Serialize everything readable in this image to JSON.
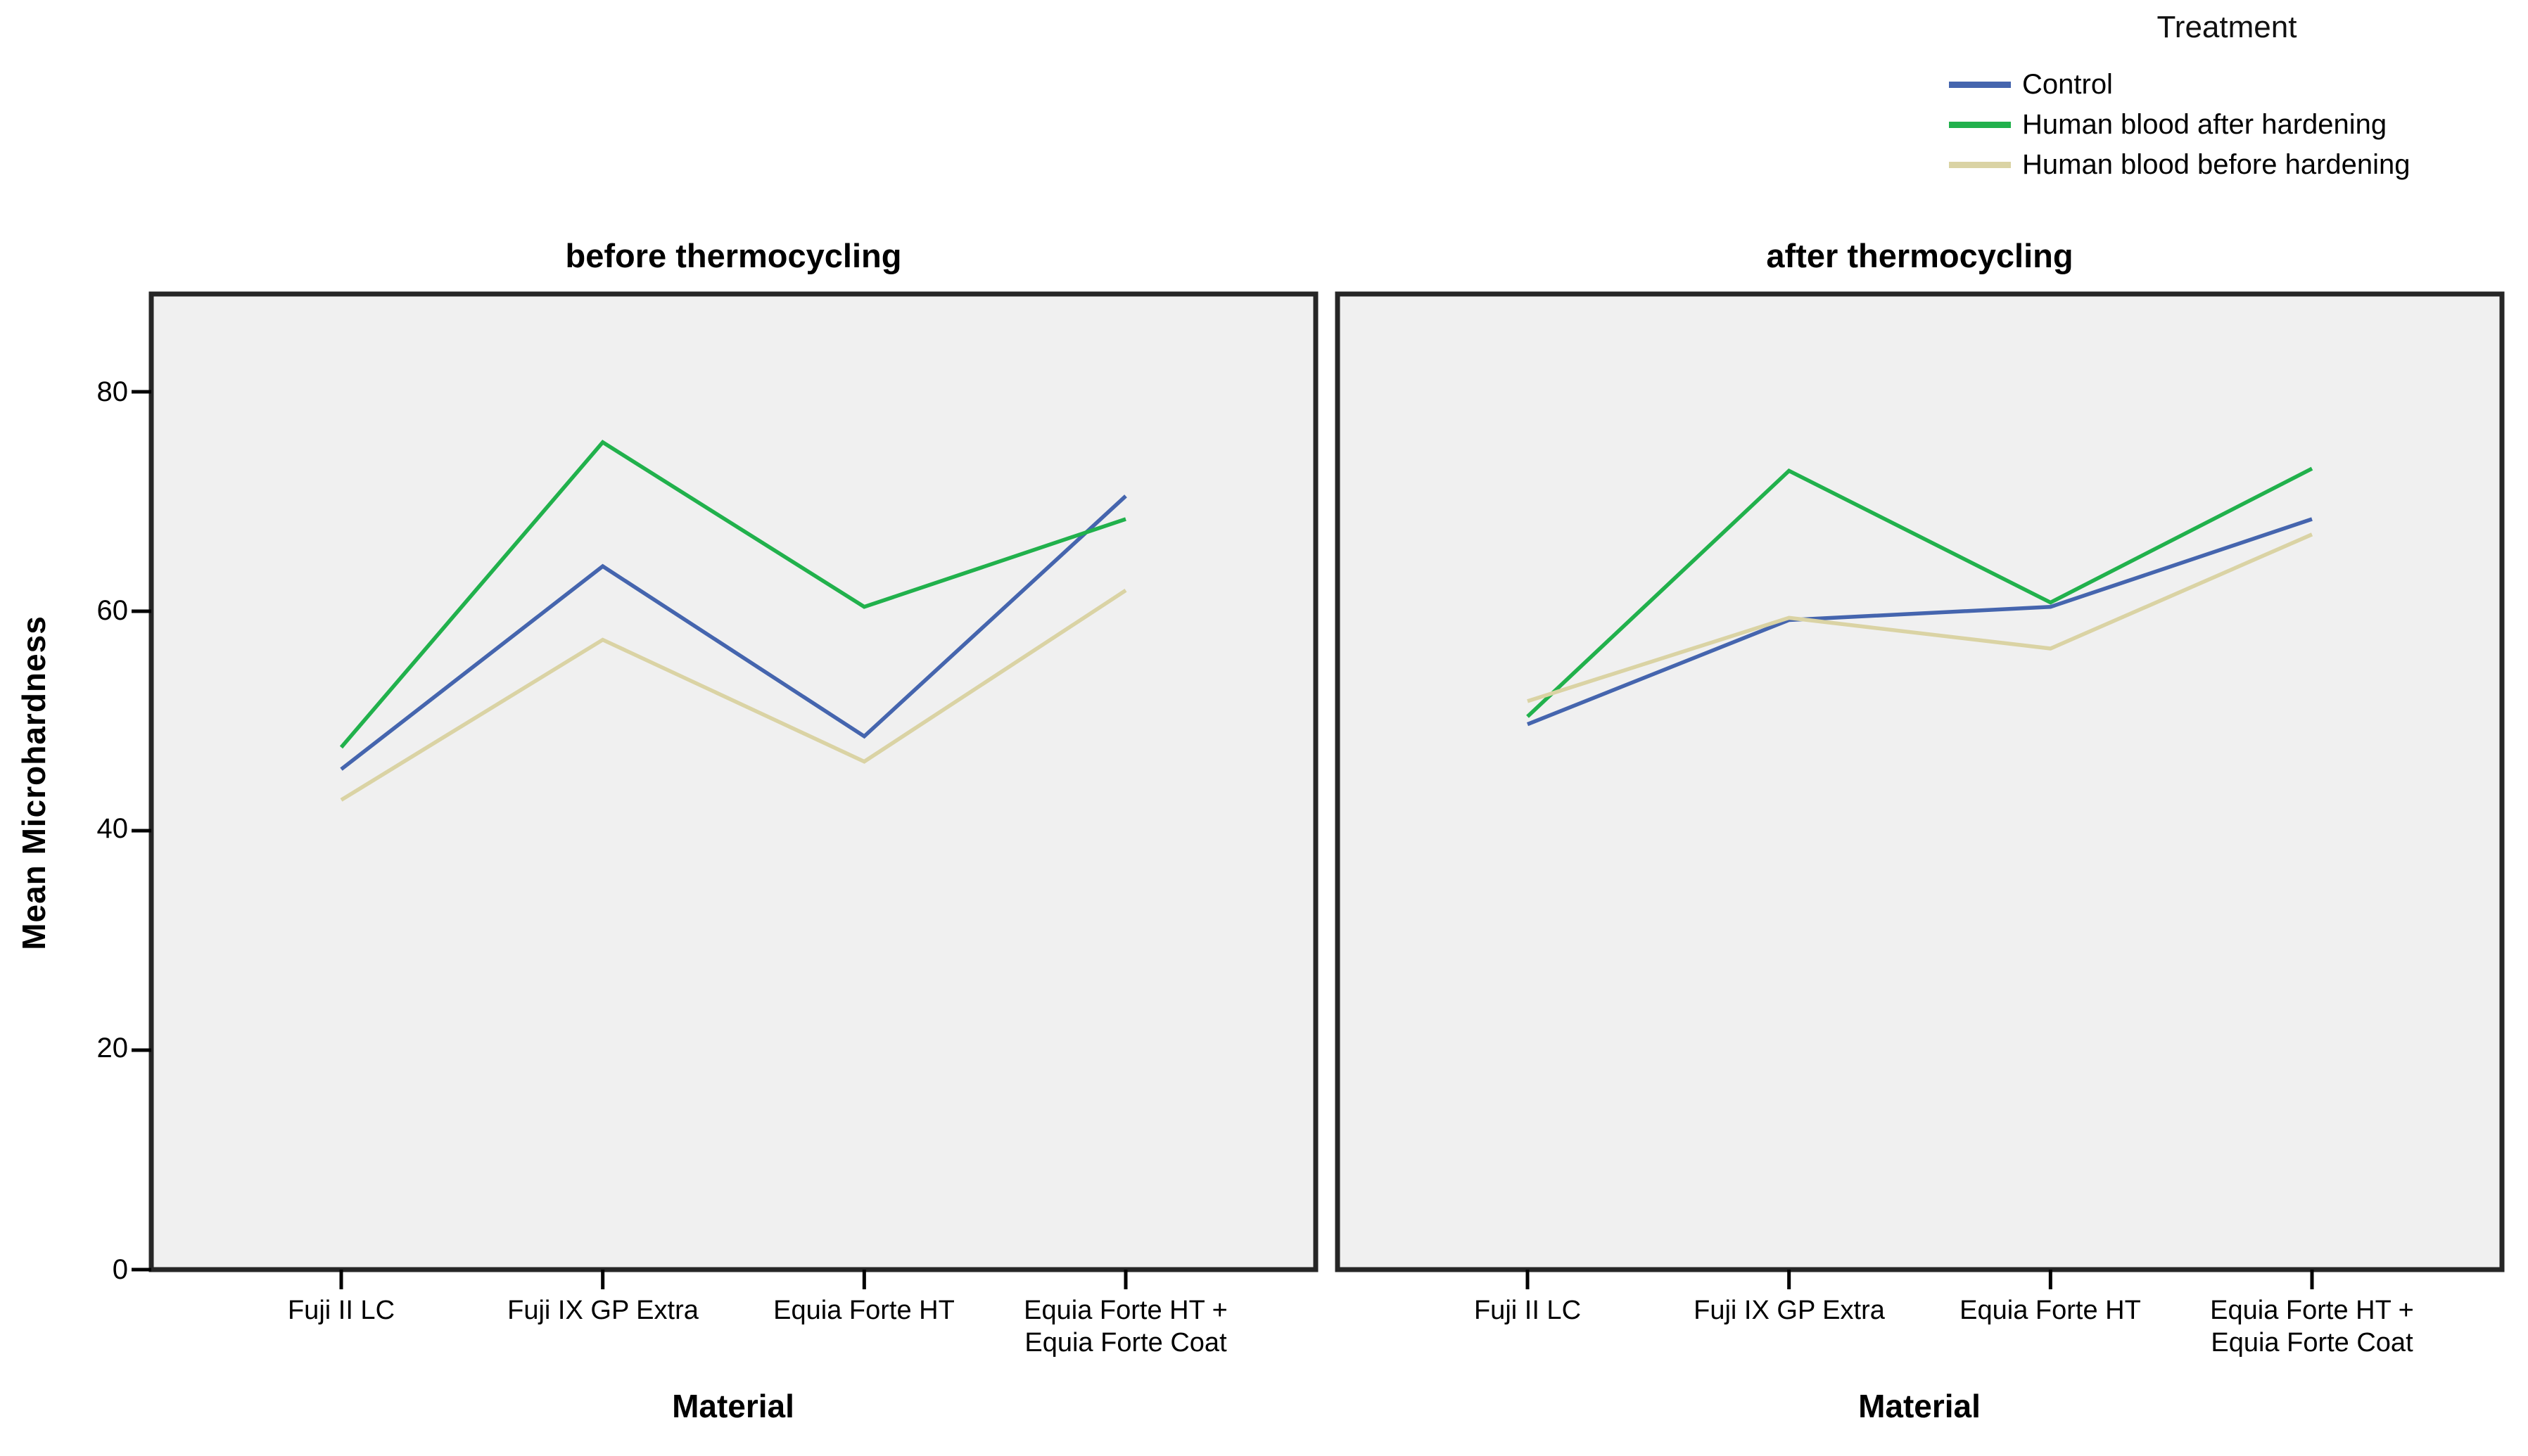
{
  "figure": {
    "legend": {
      "title": "Treatment",
      "items": [
        {
          "label": "Control",
          "color": "#4565AE"
        },
        {
          "label": "Human blood after hardening",
          "color": "#21B14C"
        },
        {
          "label": "Human blood before hardening",
          "color": "#DAD3A4"
        }
      ]
    },
    "y_axis": {
      "label": "Mean Microhardness",
      "tick_labels": [
        "80",
        "60",
        "40",
        "20",
        "0"
      ]
    },
    "x_axis": {
      "label_left": "Material",
      "label_right": "Material",
      "categories": [
        "Fuji II LC",
        "Fuji IX GP Extra",
        "Equia Forte HT",
        "Equia Forte HT +\nEquia Forte Coat"
      ]
    },
    "colors": {
      "plot_background": "#F0F0F0",
      "frame": "#262626",
      "axis": "#000000"
    }
  },
  "chart_data": [
    {
      "type": "line",
      "title": "before thermocycling",
      "xlabel": "Material",
      "ylabel": "Mean Microhardness",
      "ylim": [
        0,
        89
      ],
      "yticks": [
        0,
        20,
        40,
        60,
        80
      ],
      "grid": false,
      "legend_position": "top-right-of-figure",
      "categories": [
        "Fuji II LC",
        "Fuji IX GP Extra",
        "Equia Forte HT",
        "Equia Forte HT + Equia Forte Coat"
      ],
      "series": [
        {
          "name": "Control",
          "color": "#4565AE",
          "values": [
            45.6,
            64.1,
            48.6,
            70.5
          ]
        },
        {
          "name": "Human blood after hardening",
          "color": "#21B14C",
          "values": [
            47.6,
            75.4,
            60.4,
            68.4
          ]
        },
        {
          "name": "Human blood before hardening",
          "color": "#DAD3A4",
          "values": [
            42.8,
            57.4,
            46.3,
            61.9
          ]
        }
      ]
    },
    {
      "type": "line",
      "title": "after thermocycling",
      "xlabel": "Material",
      "ylabel": "Mean Microhardness",
      "ylim": [
        0,
        89
      ],
      "yticks": [
        0,
        20,
        40,
        60,
        80
      ],
      "grid": false,
      "legend_position": "top-right-of-figure",
      "categories": [
        "Fuji II LC",
        "Fuji IX GP Extra",
        "Equia Forte HT",
        "Equia Forte HT + Equia Forte Coat"
      ],
      "series": [
        {
          "name": "Control",
          "color": "#4565AE",
          "values": [
            49.7,
            59.2,
            60.4,
            68.4
          ]
        },
        {
          "name": "Human blood after hardening",
          "color": "#21B14C",
          "values": [
            50.4,
            72.8,
            60.8,
            73.0
          ]
        },
        {
          "name": "Human blood before hardening",
          "color": "#DAD3A4",
          "values": [
            51.8,
            59.4,
            56.6,
            67.0
          ]
        }
      ]
    }
  ]
}
